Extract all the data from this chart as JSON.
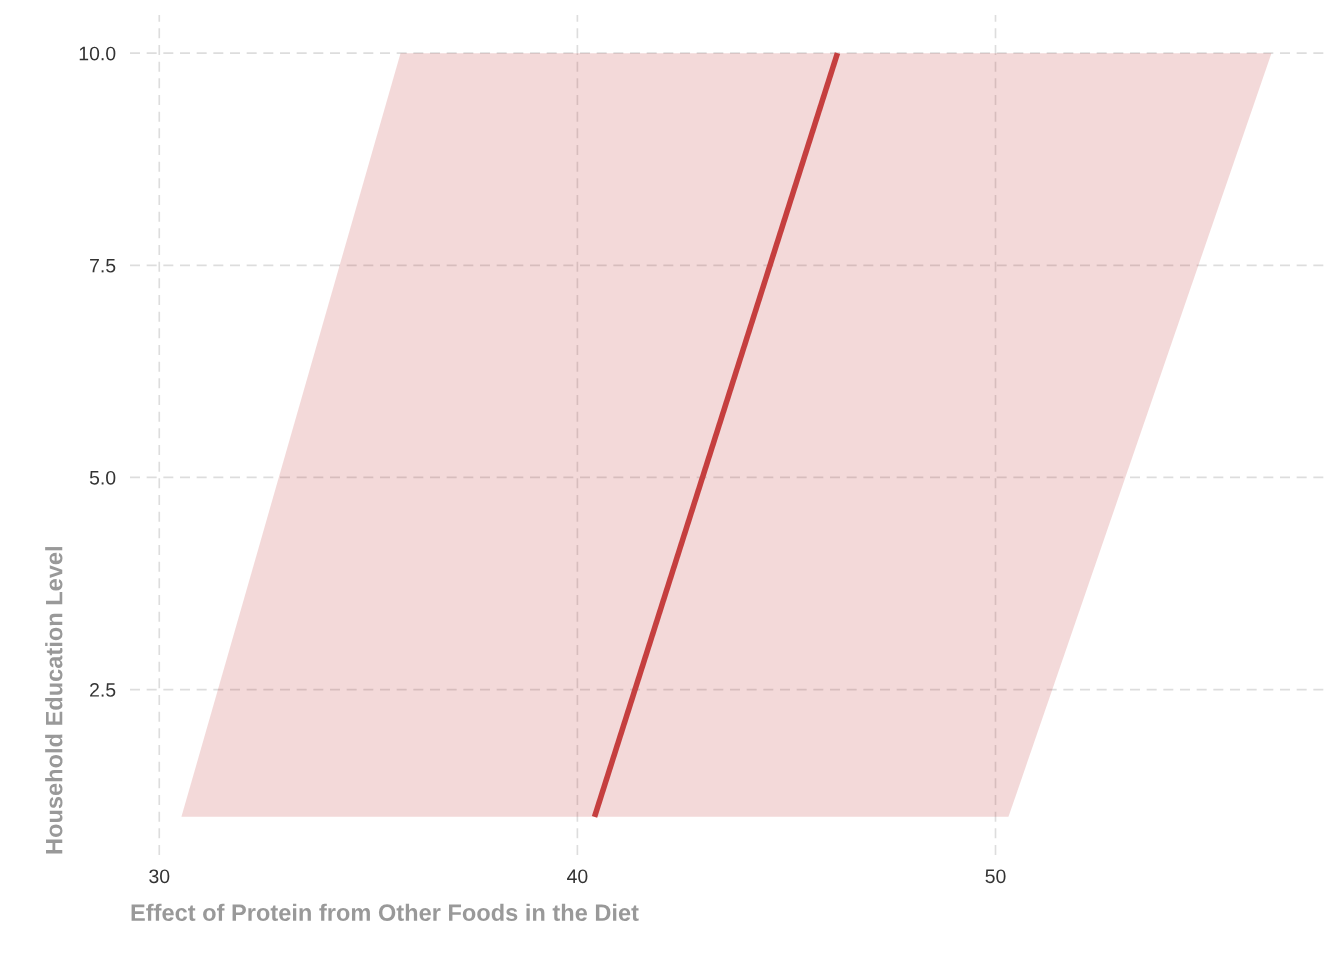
{
  "chart_data": {
    "type": "line",
    "orientation": "horizontal",
    "xlabel": "Effect of Protein from Other Foods in the Diet",
    "ylabel": "Household Education Level",
    "series": [
      {
        "color": "#c53f3f",
        "x": [
          1,
          10
        ],
        "values": [
          40.41,
          46.22
        ],
        "lower": [
          30.53,
          35.77
        ],
        "upper": [
          50.31,
          56.6
        ]
      }
    ],
    "xlim": [
      29.3,
      58.0
    ],
    "xticks": [
      30,
      40,
      50
    ],
    "ylim": [
      0.55,
      10.45
    ],
    "yticks": [
      {
        "value": 2.5,
        "label": "2.5"
      },
      {
        "value": 5,
        "label": "5.0"
      },
      {
        "value": 7.5,
        "label": "7.5"
      },
      {
        "value": 10,
        "label": "10.0"
      }
    ],
    "grid": true,
    "line_style": "solid"
  }
}
